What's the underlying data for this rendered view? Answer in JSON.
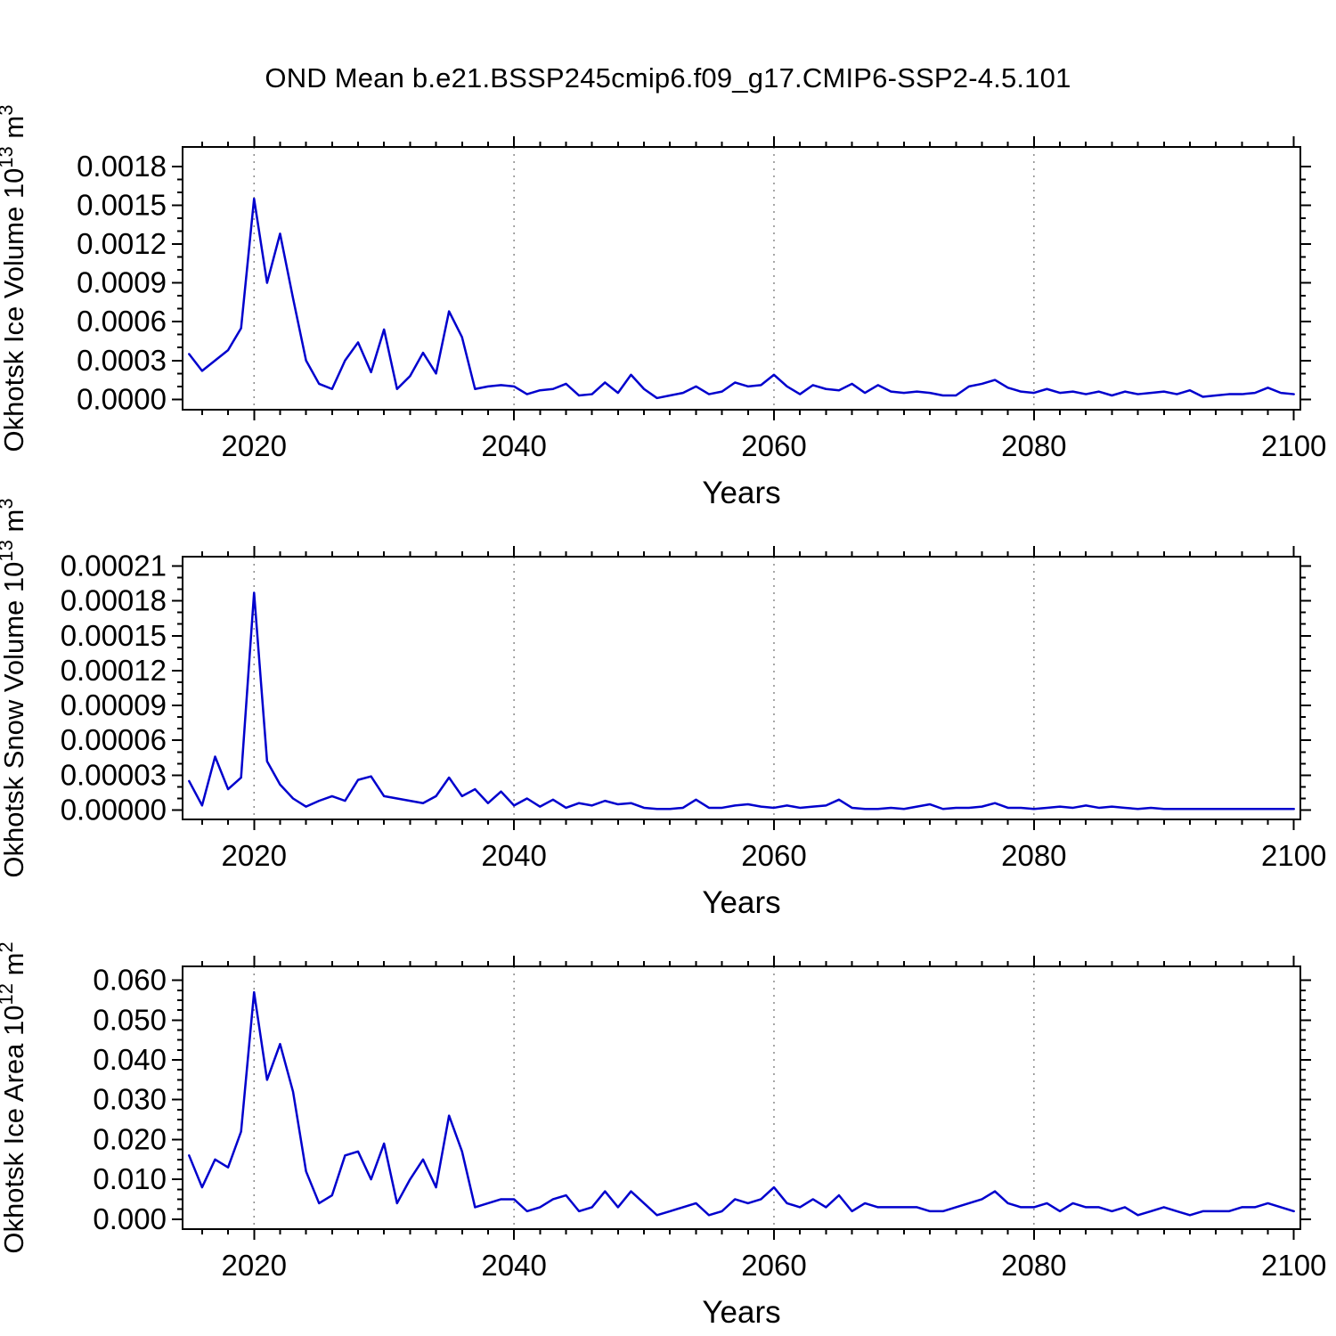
{
  "title": "OND Mean b.e21.BSSP245cmip6.f09_g17.CMIP6-SSP2-4.5.101",
  "colors": {
    "line": "#0000cd",
    "grid": "#8a8a8a",
    "axis": "#000000"
  },
  "chart_data": [
    {
      "type": "line",
      "name": "okhotsk-ice-volume",
      "ylabel": "Okhotsk Ice Volume 10^13^ m^3^",
      "xlabel": "Years",
      "xlim": [
        2014.5,
        2100.5
      ],
      "ylim": [
        -8e-05,
        0.00195
      ],
      "xticks": [
        2020,
        2040,
        2060,
        2080,
        2100
      ],
      "xtick_labels": [
        "2020",
        "2040",
        "2060",
        "2080",
        "2100"
      ],
      "yticks": [
        0.0,
        0.0003,
        0.0006,
        0.0009,
        0.0012,
        0.0015,
        0.0018
      ],
      "ytick_labels": [
        "0.0000",
        "0.0003",
        "0.0006",
        "0.0009",
        "0.0012",
        "0.0015",
        "0.0018"
      ],
      "grid_x": [
        2020,
        2040,
        2060,
        2080
      ],
      "x_minor_step": 2,
      "y_minor_divs": 3,
      "years": [
        2015,
        2016,
        2017,
        2018,
        2019,
        2020,
        2021,
        2022,
        2023,
        2024,
        2025,
        2026,
        2027,
        2028,
        2029,
        2030,
        2031,
        2032,
        2033,
        2034,
        2035,
        2036,
        2037,
        2038,
        2039,
        2040,
        2041,
        2042,
        2043,
        2044,
        2045,
        2046,
        2047,
        2048,
        2049,
        2050,
        2051,
        2052,
        2053,
        2054,
        2055,
        2056,
        2057,
        2058,
        2059,
        2060,
        2061,
        2062,
        2063,
        2064,
        2065,
        2066,
        2067,
        2068,
        2069,
        2070,
        2071,
        2072,
        2073,
        2074,
        2075,
        2076,
        2077,
        2078,
        2079,
        2080,
        2081,
        2082,
        2083,
        2084,
        2085,
        2086,
        2087,
        2088,
        2089,
        2090,
        2091,
        2092,
        2093,
        2094,
        2095,
        2096,
        2097,
        2098,
        2099,
        2100
      ],
      "values": [
        0.00035,
        0.00022,
        0.0003,
        0.00038,
        0.00055,
        0.00155,
        0.0009,
        0.00128,
        0.00078,
        0.0003,
        0.00012,
        8e-05,
        0.0003,
        0.00044,
        0.00021,
        0.00054,
        8e-05,
        0.00018,
        0.00036,
        0.0002,
        0.00068,
        0.00048,
        8e-05,
        0.0001,
        0.00011,
        0.0001,
        4e-05,
        7e-05,
        8e-05,
        0.00012,
        3e-05,
        4e-05,
        0.00013,
        5e-05,
        0.00019,
        8e-05,
        1e-05,
        3e-05,
        5e-05,
        0.0001,
        4e-05,
        6e-05,
        0.00013,
        0.0001,
        0.00011,
        0.00019,
        0.0001,
        4e-05,
        0.00011,
        8e-05,
        7e-05,
        0.00012,
        5e-05,
        0.00011,
        6e-05,
        5e-05,
        6e-05,
        5e-05,
        3e-05,
        3e-05,
        0.0001,
        0.00012,
        0.00015,
        9e-05,
        6e-05,
        5e-05,
        8e-05,
        5e-05,
        6e-05,
        4e-05,
        6e-05,
        3e-05,
        6e-05,
        4e-05,
        5e-05,
        6e-05,
        4e-05,
        7e-05,
        2e-05,
        3e-05,
        4e-05,
        4e-05,
        5e-05,
        9e-05,
        5e-05,
        4e-05
      ]
    },
    {
      "type": "line",
      "name": "okhotsk-snow-volume",
      "ylabel": "Okhotsk Snow Volume 10^13^ m^3^",
      "xlabel": "Years",
      "xlim": [
        2014.5,
        2100.5
      ],
      "ylim": [
        -8e-06,
        0.000218
      ],
      "xticks": [
        2020,
        2040,
        2060,
        2080,
        2100
      ],
      "xtick_labels": [
        "2020",
        "2040",
        "2060",
        "2080",
        "2100"
      ],
      "yticks": [
        0.0,
        3e-05,
        6e-05,
        9e-05,
        0.00012,
        0.00015,
        0.00018,
        0.00021
      ],
      "ytick_labels": [
        "0.00000",
        "0.00003",
        "0.00006",
        "0.00009",
        "0.00012",
        "0.00015",
        "0.00018",
        "0.00021"
      ],
      "grid_x": [
        2020,
        2040,
        2060,
        2080
      ],
      "x_minor_step": 2,
      "y_minor_divs": 3,
      "years": [
        2015,
        2016,
        2017,
        2018,
        2019,
        2020,
        2021,
        2022,
        2023,
        2024,
        2025,
        2026,
        2027,
        2028,
        2029,
        2030,
        2031,
        2032,
        2033,
        2034,
        2035,
        2036,
        2037,
        2038,
        2039,
        2040,
        2041,
        2042,
        2043,
        2044,
        2045,
        2046,
        2047,
        2048,
        2049,
        2050,
        2051,
        2052,
        2053,
        2054,
        2055,
        2056,
        2057,
        2058,
        2059,
        2060,
        2061,
        2062,
        2063,
        2064,
        2065,
        2066,
        2067,
        2068,
        2069,
        2070,
        2071,
        2072,
        2073,
        2074,
        2075,
        2076,
        2077,
        2078,
        2079,
        2080,
        2081,
        2082,
        2083,
        2084,
        2085,
        2086,
        2087,
        2088,
        2089,
        2090,
        2091,
        2092,
        2093,
        2094,
        2095,
        2096,
        2097,
        2098,
        2099,
        2100
      ],
      "values": [
        2.5e-05,
        4e-06,
        4.6e-05,
        1.8e-05,
        2.8e-05,
        0.000187,
        4.2e-05,
        2.2e-05,
        1e-05,
        3e-06,
        8e-06,
        1.2e-05,
        8e-06,
        2.6e-05,
        2.9e-05,
        1.2e-05,
        1e-05,
        8e-06,
        6e-06,
        1.2e-05,
        2.8e-05,
        1.2e-05,
        1.8e-05,
        6e-06,
        1.6e-05,
        4e-06,
        1e-05,
        3e-06,
        9e-06,
        2e-06,
        6e-06,
        4e-06,
        8e-06,
        5e-06,
        6e-06,
        2e-06,
        1e-06,
        1e-06,
        2e-06,
        9e-06,
        2e-06,
        2e-06,
        4e-06,
        5e-06,
        3e-06,
        2e-06,
        4e-06,
        2e-06,
        3e-06,
        4e-06,
        9e-06,
        2e-06,
        1e-06,
        1e-06,
        2e-06,
        1e-06,
        3e-06,
        5e-06,
        1e-06,
        2e-06,
        2e-06,
        3e-06,
        6e-06,
        2e-06,
        2e-06,
        1e-06,
        2e-06,
        3e-06,
        2e-06,
        4e-06,
        2e-06,
        3e-06,
        2e-06,
        1e-06,
        2e-06,
        1e-06,
        1e-06,
        1e-06,
        1e-06,
        1e-06,
        1e-06,
        1e-06,
        1e-06,
        1e-06,
        1e-06,
        1e-06
      ]
    },
    {
      "type": "line",
      "name": "okhotsk-ice-area",
      "ylabel": "Okhotsk Ice Area 10^12^ m^2^",
      "xlabel": "Years",
      "xlim": [
        2014.5,
        2100.5
      ],
      "ylim": [
        -0.0025,
        0.0635
      ],
      "xticks": [
        2020,
        2040,
        2060,
        2080,
        2100
      ],
      "xtick_labels": [
        "2020",
        "2040",
        "2060",
        "2080",
        "2100"
      ],
      "yticks": [
        0.0,
        0.01,
        0.02,
        0.03,
        0.04,
        0.05,
        0.06
      ],
      "ytick_labels": [
        "0.000",
        "0.010",
        "0.020",
        "0.030",
        "0.040",
        "0.050",
        "0.060"
      ],
      "grid_x": [
        2020,
        2040,
        2060,
        2080
      ],
      "x_minor_step": 2,
      "y_minor_divs": 4,
      "years": [
        2015,
        2016,
        2017,
        2018,
        2019,
        2020,
        2021,
        2022,
        2023,
        2024,
        2025,
        2026,
        2027,
        2028,
        2029,
        2030,
        2031,
        2032,
        2033,
        2034,
        2035,
        2036,
        2037,
        2038,
        2039,
        2040,
        2041,
        2042,
        2043,
        2044,
        2045,
        2046,
        2047,
        2048,
        2049,
        2050,
        2051,
        2052,
        2053,
        2054,
        2055,
        2056,
        2057,
        2058,
        2059,
        2060,
        2061,
        2062,
        2063,
        2064,
        2065,
        2066,
        2067,
        2068,
        2069,
        2070,
        2071,
        2072,
        2073,
        2074,
        2075,
        2076,
        2077,
        2078,
        2079,
        2080,
        2081,
        2082,
        2083,
        2084,
        2085,
        2086,
        2087,
        2088,
        2089,
        2090,
        2091,
        2092,
        2093,
        2094,
        2095,
        2096,
        2097,
        2098,
        2099,
        2100
      ],
      "values": [
        0.016,
        0.008,
        0.015,
        0.013,
        0.022,
        0.057,
        0.035,
        0.044,
        0.032,
        0.012,
        0.004,
        0.006,
        0.016,
        0.017,
        0.01,
        0.019,
        0.004,
        0.01,
        0.015,
        0.008,
        0.026,
        0.017,
        0.003,
        0.004,
        0.005,
        0.005,
        0.002,
        0.003,
        0.005,
        0.006,
        0.002,
        0.003,
        0.007,
        0.003,
        0.007,
        0.004,
        0.001,
        0.002,
        0.003,
        0.004,
        0.001,
        0.002,
        0.005,
        0.004,
        0.005,
        0.008,
        0.004,
        0.003,
        0.005,
        0.003,
        0.006,
        0.002,
        0.004,
        0.003,
        0.003,
        0.003,
        0.003,
        0.002,
        0.002,
        0.003,
        0.004,
        0.005,
        0.007,
        0.004,
        0.003,
        0.003,
        0.004,
        0.002,
        0.004,
        0.003,
        0.003,
        0.002,
        0.003,
        0.001,
        0.002,
        0.003,
        0.002,
        0.001,
        0.002,
        0.002,
        0.002,
        0.003,
        0.003,
        0.004,
        0.003,
        0.002
      ]
    }
  ]
}
